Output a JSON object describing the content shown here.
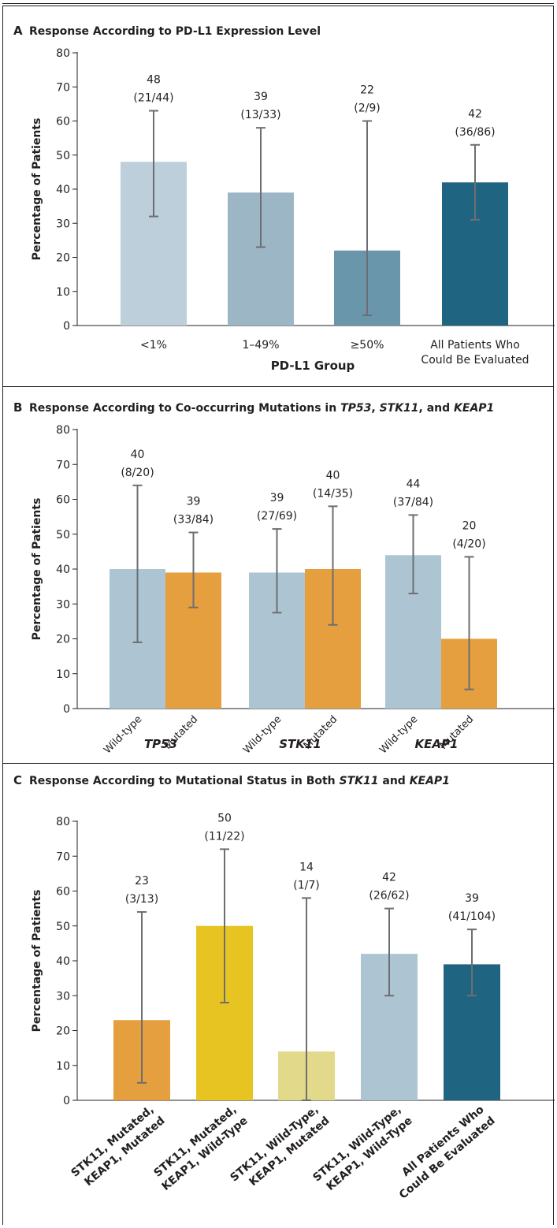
{
  "chart_data": [
    {
      "panel": "A",
      "type": "bar",
      "title": "Response According to PD-L1 Expression Level",
      "ylabel": "Percentage of Patients",
      "xlabel": "PD-L1 Group",
      "ylim": [
        0,
        80
      ],
      "yticks": [
        0,
        10,
        20,
        30,
        40,
        50,
        60,
        70,
        80
      ],
      "categories": [
        {
          "label": "<1%",
          "value": 48,
          "count": "(21/44)",
          "ci": [
            32,
            63
          ],
          "color": "#bccfda"
        },
        {
          "label": "1–49%",
          "value": 39,
          "count": "(13/33)",
          "ci": [
            23,
            58
          ],
          "color": "#9db6c6"
        },
        {
          "label": "≥50%",
          "value": 22,
          "count": "(2/9)",
          "ci": [
            3,
            60
          ],
          "color": "#6a96ac"
        },
        {
          "label": "All Patients Who|Could Be Evaluated",
          "value": 42,
          "count": "(36/86)",
          "ci": [
            31,
            53
          ],
          "color": "#1f6480"
        }
      ]
    },
    {
      "panel": "B",
      "type": "bar",
      "title_parts": [
        {
          "text": "Response According to Co-occurring Mutations in ",
          "italic": false
        },
        {
          "text": "TP53",
          "italic": true
        },
        {
          "text": ", ",
          "italic": false
        },
        {
          "text": "STK11",
          "italic": true
        },
        {
          "text": ", and ",
          "italic": false
        },
        {
          "text": "KEAP1",
          "italic": true
        }
      ],
      "ylabel": "Percentage of Patients",
      "ylim": [
        0,
        80
      ],
      "yticks": [
        0,
        10,
        20,
        30,
        40,
        50,
        60,
        70,
        80
      ],
      "groups": [
        {
          "name": "TP53",
          "bars": [
            {
              "label": "Wild-type",
              "value": 40,
              "count": "(8/20)",
              "ci": [
                19,
                64
              ],
              "color": "#adc5d3"
            },
            {
              "label": "Mutated",
              "value": 39,
              "count": "(33/84)",
              "ci": [
                29,
                50.5
              ],
              "color": "#e59f3f"
            }
          ]
        },
        {
          "name": "STK11",
          "bars": [
            {
              "label": "Wild-type",
              "value": 39,
              "count": "(27/69)",
              "ci": [
                27.5,
                51.5
              ],
              "color": "#adc5d3"
            },
            {
              "label": "Mutated",
              "value": 40,
              "count": "(14/35)",
              "ci": [
                24,
                58
              ],
              "color": "#e59f3f"
            }
          ]
        },
        {
          "name": "KEAP1",
          "bars": [
            {
              "label": "Wild-type",
              "value": 44,
              "count": "(37/84)",
              "ci": [
                33,
                55.5
              ],
              "color": "#adc5d3"
            },
            {
              "label": "Mutated",
              "value": 20,
              "count": "(4/20)",
              "ci": [
                5.5,
                43.5
              ],
              "color": "#e59f3f"
            }
          ]
        }
      ]
    },
    {
      "panel": "C",
      "type": "bar",
      "title_parts": [
        {
          "text": "Response According to Mutational Status in Both ",
          "italic": false
        },
        {
          "text": "STK11",
          "italic": true
        },
        {
          "text": " and ",
          "italic": false
        },
        {
          "text": "KEAP1",
          "italic": true
        }
      ],
      "ylabel": "Percentage of Patients",
      "ylim": [
        0,
        80
      ],
      "yticks": [
        0,
        10,
        20,
        30,
        40,
        50,
        60,
        70,
        80
      ],
      "categories": [
        {
          "label": "STK11, Mutated,|KEAP1, Mutated",
          "value": 23,
          "count": "(3/13)",
          "ci": [
            5,
            54
          ],
          "color": "#e59f3f"
        },
        {
          "label": "STK11, Mutated,|KEAP1, Wild-Type",
          "value": 50,
          "count": "(11/22)",
          "ci": [
            28,
            72
          ],
          "color": "#e8c422"
        },
        {
          "label": "STK11, Wild-Type,|KEAP1, Mutated",
          "value": 14,
          "count": "(1/7)",
          "ci": [
            0,
            58
          ],
          "color": "#e2d98a"
        },
        {
          "label": "STK11, Wild-Type,|KEAP1, Wild-Type",
          "value": 42,
          "count": "(26/62)",
          "ci": [
            30,
            55
          ],
          "color": "#adc5d3"
        },
        {
          "label": "All Patients Who|Could Be Evaluated",
          "value": 39,
          "count": "(41/104)",
          "ci": [
            30,
            49
          ],
          "color": "#1f6480"
        }
      ]
    }
  ]
}
